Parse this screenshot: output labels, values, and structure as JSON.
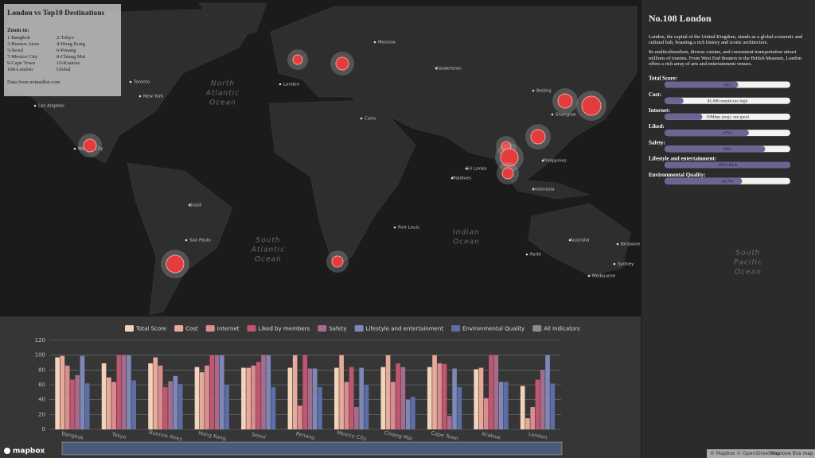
{
  "panel": {
    "title": "London vs Top10 Destinations",
    "zoom_label": "Zoom to:",
    "zoom_items": [
      "1-Bangkok",
      "2-Tokyo",
      "3-Buenos Aires",
      "4-Hong Kong",
      "5-Seoul",
      "6-Penang",
      "7-Mexico City",
      "8-Chiang Mai",
      "9-Cape Town",
      "10-Kraków",
      "108-London",
      "Global"
    ],
    "source": "Data from nomadlist.com"
  },
  "info": {
    "title": "No.108 London",
    "paragraphs": [
      "London, the capital of the United Kingdom, stands as a global economic and cultural hub, boasting a rich history and iconic architecture.",
      "Its multiculturalism, diverse cuisine, and convenient transportation attract millions of tourists. From West End theaters to the British Museum, London offers a rich array of arts and entertainment venues."
    ],
    "metrics": [
      {
        "label": "Total Score:",
        "text": "58.5"
      },
      {
        "label": "Cost:",
        "text": "$5,086 month-too high"
      },
      {
        "label": "Internet:",
        "text": "30Mbps (avg)- not good"
      },
      {
        "label": "Liked:",
        "text": "67%"
      },
      {
        "label": "Safety:",
        "text": "80%"
      },
      {
        "label": "Lifestyle and entertainment:",
        "text": "100% Rich"
      },
      {
        "label": "Environmental Quality:",
        "text": "61.7%"
      }
    ]
  },
  "map": {
    "oceans": [
      [
        "North",
        "Atlantic",
        "Ocean"
      ],
      [
        "South",
        "Atlantic",
        "Ocean"
      ],
      [
        "Indian",
        "Ocean"
      ],
      [
        "South",
        "Pacific",
        "Ocean"
      ]
    ],
    "places": [
      "Toronto",
      "New York",
      "Los Angeles",
      "Mexico City",
      "London",
      "Moscow",
      "Cairo",
      "Beijing",
      "Shanghai",
      "Sri Lanka",
      "Maldives",
      "Port Louis",
      "Sao Paulo",
      "Perth",
      "Sydney",
      "Melbourne",
      "Brisbane",
      "Philippines",
      "Indonesia",
      "Australia",
      "Brazil",
      "Kazakhstan"
    ]
  },
  "chart_data": {
    "type": "bar",
    "categories": [
      "Bangkok",
      "Tokyo",
      "Buenos Aires",
      "Hong Kong",
      "Seoul",
      "Penang",
      "Mexico City",
      "Chiang Mai",
      "Cape Town",
      "Krakow",
      "London"
    ],
    "series": [
      {
        "name": "Total Score",
        "color": "#f4d3bb",
        "values": [
          97,
          89,
          89,
          84,
          83,
          83,
          83,
          84,
          84,
          81,
          58.5
        ]
      },
      {
        "name": "Cost",
        "color": "#e6aa9a",
        "values": [
          99,
          70,
          97,
          77,
          83,
          100,
          100,
          100,
          100,
          83,
          15
        ]
      },
      {
        "name": "Internet",
        "color": "#d98d8f",
        "values": [
          86,
          64,
          86,
          86,
          86,
          32,
          64,
          64,
          89,
          42,
          30
        ]
      },
      {
        "name": "Liked by members",
        "color": "#c0566f",
        "values": [
          67,
          100,
          57,
          100,
          91,
          100,
          84,
          89,
          88,
          100,
          67
        ]
      },
      {
        "name": "Safety",
        "color": "#a66b8d",
        "values": [
          73,
          100,
          65,
          100,
          100,
          82,
          30,
          84,
          18,
          100,
          80
        ]
      },
      {
        "name": "Lifestyle and entertainment",
        "color": "#7d88b6",
        "values": [
          99,
          100,
          72,
          100,
          100,
          82,
          83,
          40,
          82,
          64,
          100
        ]
      },
      {
        "name": "Environmental Quality",
        "color": "#5d6da6",
        "values": [
          62,
          66,
          61,
          60,
          57,
          57,
          60,
          44,
          57,
          64,
          61.7
        ]
      }
    ],
    "legend_all": "All Indicators",
    "ylim": [
      0,
      120
    ],
    "yticks": [
      0,
      20,
      40,
      60,
      80,
      100,
      120
    ],
    "grid": true
  },
  "footer": {
    "logo": "mapbox",
    "credits": "© Mapbox © OpenStreetMap",
    "improve": "Improve this map"
  }
}
